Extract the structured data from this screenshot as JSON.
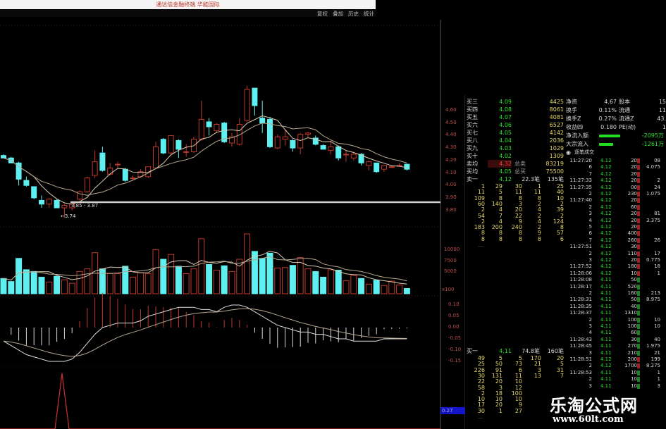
{
  "window": {
    "title": "通达信金融终端 华能国际"
  },
  "toolbar": {
    "buttons": [
      "复权",
      "叠加",
      "历史",
      "统计"
    ]
  },
  "colors": {
    "up": "#c0392b",
    "down": "#5ef0f0",
    "ma_line": "#d9c9b0",
    "background": "#000000",
    "inflow_bar": "#22dd22"
  },
  "chart_data": [
    {
      "type": "candlestick",
      "title": "",
      "y_ticks": [
        "4.60",
        "4.50",
        "4.40",
        "4.30",
        "4.20",
        "4.10",
        "4.00",
        "3.90",
        "3.80"
      ],
      "ohlc": [
        [
          4.24,
          4.25,
          4.22,
          4.22
        ],
        [
          4.22,
          4.23,
          4.18,
          4.18
        ],
        [
          4.18,
          4.19,
          4.0,
          4.05
        ],
        [
          4.04,
          4.07,
          3.99,
          4.0
        ],
        [
          3.99,
          3.99,
          3.89,
          3.9
        ],
        [
          3.88,
          3.92,
          3.82,
          3.85
        ],
        [
          3.85,
          3.9,
          3.82,
          3.89
        ],
        [
          3.88,
          3.89,
          3.82,
          3.82
        ],
        [
          3.82,
          3.85,
          3.74,
          3.84
        ],
        [
          3.82,
          3.86,
          3.8,
          3.85
        ],
        [
          3.89,
          3.96,
          3.88,
          3.95
        ],
        [
          3.95,
          4.07,
          3.94,
          4.06
        ],
        [
          4.08,
          4.28,
          4.06,
          4.19
        ],
        [
          4.26,
          4.31,
          4.11,
          4.12
        ],
        [
          4.09,
          4.18,
          4.08,
          4.14
        ],
        [
          4.17,
          4.19,
          4.14,
          4.17
        ],
        [
          4.13,
          4.14,
          4.03,
          4.04
        ],
        [
          4.06,
          4.08,
          4.04,
          4.06
        ],
        [
          4.07,
          4.13,
          4.06,
          4.11
        ],
        [
          4.07,
          4.15,
          4.06,
          4.15
        ],
        [
          4.14,
          4.35,
          4.13,
          4.31
        ],
        [
          4.37,
          4.38,
          4.25,
          4.26
        ],
        [
          4.26,
          4.4,
          4.24,
          4.4
        ],
        [
          4.36,
          4.37,
          4.22,
          4.29
        ],
        [
          4.27,
          4.33,
          4.23,
          4.27
        ],
        [
          4.27,
          4.39,
          4.26,
          4.37
        ],
        [
          4.37,
          4.68,
          4.36,
          4.53
        ],
        [
          4.51,
          4.54,
          4.4,
          4.47
        ],
        [
          4.44,
          4.5,
          4.42,
          4.49
        ],
        [
          4.5,
          4.51,
          4.34,
          4.35
        ],
        [
          4.34,
          4.42,
          4.31,
          4.39
        ],
        [
          4.33,
          4.54,
          4.32,
          4.49
        ],
        [
          4.52,
          4.8,
          4.51,
          4.77
        ],
        [
          4.78,
          4.78,
          4.56,
          4.64
        ],
        [
          4.54,
          4.68,
          4.42,
          4.5
        ],
        [
          4.53,
          4.55,
          4.3,
          4.31
        ],
        [
          4.3,
          4.41,
          4.29,
          4.39
        ],
        [
          4.37,
          4.45,
          4.32,
          4.39
        ],
        [
          4.36,
          4.37,
          4.27,
          4.3
        ],
        [
          4.3,
          4.42,
          4.25,
          4.41
        ],
        [
          4.41,
          4.43,
          4.38,
          4.42
        ],
        [
          4.38,
          4.4,
          4.32,
          4.33
        ],
        [
          4.32,
          4.33,
          4.29,
          4.29
        ],
        [
          4.28,
          4.36,
          4.25,
          4.31
        ],
        [
          4.31,
          4.32,
          4.2,
          4.22
        ],
        [
          4.25,
          4.28,
          4.19,
          4.25
        ],
        [
          4.22,
          4.27,
          4.2,
          4.25
        ],
        [
          4.25,
          4.26,
          4.16,
          4.18
        ],
        [
          4.16,
          4.2,
          4.12,
          4.19
        ],
        [
          4.18,
          4.18,
          4.1,
          4.11
        ],
        [
          4.13,
          4.16,
          4.11,
          4.16
        ],
        [
          4.15,
          4.16,
          4.14,
          4.15
        ],
        [
          4.16,
          4.18,
          4.15,
          4.16
        ],
        [
          4.17,
          4.17,
          4.12,
          4.13
        ]
      ],
      "moving_averages": [
        5,
        10
      ],
      "support_line_label": "3.85 - 3.87",
      "low_marker_label": "←3.74"
    },
    {
      "type": "bar",
      "y_ticks": [
        "10000",
        "7500",
        "5000"
      ],
      "unit_label": "x100",
      "values": [
        3500,
        2800,
        8100,
        5500,
        5100,
        3800,
        2700,
        4000,
        3200,
        2400,
        5100,
        5700,
        9400,
        5700,
        4600,
        4600,
        6300,
        3800,
        4800,
        4600,
        10100,
        7900,
        9000,
        6300,
        4600,
        5700,
        12600,
        6700,
        5400,
        6400,
        5100,
        7900,
        13700,
        9700,
        8100,
        9300,
        5900,
        6000,
        6500,
        8300,
        5700,
        5100,
        3800,
        5500,
        5400,
        3000,
        4200,
        3500,
        2200,
        3100,
        1900,
        2900,
        2000,
        1200
      ]
    },
    {
      "type": "line",
      "y_ticks": [
        "0.10",
        "0.05",
        "0.00",
        "-0.05",
        "-0.10",
        "-0.15"
      ],
      "dif": [
        -0.06,
        -0.08,
        -0.1,
        -0.12,
        -0.13,
        -0.14,
        -0.15,
        -0.15,
        -0.15,
        -0.14,
        -0.11,
        -0.07,
        -0.03,
        0.0,
        0.01,
        0.02,
        0.02,
        0.02,
        0.03,
        0.05,
        0.06,
        0.07,
        0.08,
        0.09,
        0.09,
        0.09,
        0.08,
        0.08,
        0.07,
        0.09,
        0.1,
        0.1,
        0.09,
        0.07,
        0.05,
        0.03,
        0.01,
        0.0,
        -0.01,
        -0.02,
        -0.02,
        -0.03,
        -0.03,
        -0.04,
        -0.05,
        -0.05,
        -0.06,
        -0.06,
        -0.06,
        -0.06,
        -0.05,
        -0.05,
        -0.05,
        -0.05
      ]
    },
    {
      "type": "line",
      "value_label": "0.27"
    }
  ],
  "order_book": {
    "levels": [
      {
        "label": "买三",
        "price": "4.09",
        "qty": "4425"
      },
      {
        "label": "买四",
        "price": "4.08",
        "qty": "8061"
      },
      {
        "label": "买五",
        "price": "4.07",
        "qty": "4081"
      },
      {
        "label": "买六",
        "price": "4.06",
        "qty": "6527"
      },
      {
        "label": "买七",
        "price": "4.05",
        "qty": "4142"
      },
      {
        "label": "买八",
        "price": "4.04",
        "qty": "2036"
      },
      {
        "label": "买九",
        "price": "4.03",
        "qty": "1029"
      },
      {
        "label": "买十",
        "price": "4.02",
        "qty": "1309"
      }
    ],
    "sell_avg": {
      "label": "卖均",
      "price": "4.32",
      "total_label": "总卖",
      "total": "83219"
    },
    "buy_avg": {
      "label": "买均",
      "price": "4.05",
      "total_label": "总买",
      "total": "75500"
    },
    "sell1": {
      "label": "卖一",
      "price": "4.12",
      "vol": "22.3笔",
      "count": "135笔"
    },
    "sell1_queue": [
      [
        "1",
        "29",
        "30",
        "1",
        "25"
      ],
      [
        "11",
        "5",
        "11",
        "11",
        "40"
      ],
      [
        "109",
        "8",
        "8",
        "8",
        "10"
      ],
      [
        "60",
        "140",
        "3",
        "2",
        "2"
      ],
      [
        "2",
        "4",
        "20",
        "4",
        "39"
      ],
      [
        "54",
        "7",
        "22",
        "2",
        "2"
      ],
      [
        "2",
        "4",
        "9",
        "4",
        "124"
      ],
      [
        "183",
        "200",
        "240",
        "2",
        "8"
      ],
      [
        "8",
        "8",
        "8",
        "9",
        "57"
      ],
      [
        "8",
        "8",
        "8",
        "8",
        "6"
      ]
    ],
    "queue_more": "....",
    "buy1": {
      "label": "买一",
      "price": "4.11",
      "vol": "74.8笔",
      "count": "160笔"
    },
    "buy1_queue": [
      [
        "49",
        "5",
        "5",
        "170",
        "20"
      ],
      [
        "25",
        "50",
        "73",
        "21",
        "5"
      ],
      [
        "226",
        "91",
        "6",
        "3",
        "31"
      ],
      [
        "30",
        "131",
        "11",
        "13",
        "7"
      ],
      [
        "22",
        "20",
        "10",
        "",
        ""
      ],
      [
        "58",
        "3",
        "12",
        "",
        ""
      ],
      [
        "2",
        "18",
        "100",
        "",
        ""
      ],
      [
        "10",
        "10",
        "10",
        "",
        ""
      ],
      [
        "17",
        "20",
        "9",
        "",
        ""
      ],
      [
        "30",
        "1",
        "27",
        "",
        ""
      ]
    ]
  },
  "info": {
    "rows": [
      {
        "label": "净资",
        "value": "4.67",
        "label2": "股本",
        "value2": "15"
      },
      {
        "label": "换手",
        "value": "0.11%",
        "label2": "流通",
        "value2": "11"
      },
      {
        "label": "换手Z",
        "value": "0.27%",
        "label2": "流通Z",
        "value2": "43."
      },
      {
        "label": "收益㈣",
        "value": "0.180",
        "label2": "PE(动)",
        "value2": "1"
      }
    ],
    "flows": [
      {
        "label": "净流入额",
        "value": "-2095万",
        "level": 0.75
      },
      {
        "label": "大宗流入",
        "value": "-1261万",
        "level": 0.5
      }
    ],
    "ticks_header": "逐笔成交"
  },
  "ticks": [
    {
      "time": "11:27:20",
      "price": "4.12",
      "vol": "20",
      "side": "buy",
      "extra": "08"
    },
    {
      "time": "6",
      "price": "4.12",
      "vol": "20",
      "side": "buy",
      "extra": "4.075"
    },
    {
      "time": "7",
      "price": "4.12",
      "vol": "20",
      "side": "buy",
      "extra": ""
    },
    {
      "time": "11:27:33",
      "price": "4.12",
      "vol": "20",
      "side": "buy",
      "extra": "2"
    },
    {
      "time": "11:27:35",
      "price": "4.12",
      "vol": "00",
      "side": "buy",
      "extra": "24"
    },
    {
      "time": "2",
      "price": "4.12",
      "vol": "230",
      "side": "buy",
      "extra": "1.075"
    },
    {
      "time": "11:27:40",
      "price": "4.12",
      "vol": "20",
      "side": "buy",
      "extra": ""
    },
    {
      "time": "2",
      "price": "4.12",
      "vol": "60",
      "side": "buy",
      "extra": ""
    },
    {
      "time": "3",
      "price": "4.12",
      "vol": "20",
      "side": "buy",
      "extra": "81"
    },
    {
      "time": "4",
      "price": "4.12",
      "vol": "20",
      "side": "buy",
      "extra": "3.375"
    },
    {
      "time": "5",
      "price": "4.12",
      "vol": "20",
      "side": "buy",
      "extra": ""
    },
    {
      "time": "6",
      "price": "4.12",
      "vol": "400",
      "side": "buy",
      "extra": ""
    },
    {
      "time": "7",
      "price": "4.12",
      "vol": "260",
      "side": "buy",
      "extra": "26"
    },
    {
      "time": "11:27:51",
      "price": "4.12",
      "vol": "30",
      "side": "buy",
      "extra": ""
    },
    {
      "time": "2",
      "price": "4.12",
      "vol": "110",
      "side": "buy",
      "extra": "17"
    },
    {
      "time": "3",
      "price": "4.12",
      "vol": "20",
      "side": "buy",
      "extra": "0.775"
    },
    {
      "time": "11:27:52",
      "price": "4.12",
      "vol": "180",
      "side": "buy",
      "extra": "18"
    },
    {
      "time": "11:28:06",
      "price": "4.12",
      "vol": "10",
      "side": "buy",
      "extra": "1"
    },
    {
      "time": "11:28:08",
      "price": "4.11",
      "vol": "50",
      "side": "sell",
      "extra": ""
    },
    {
      "time": "11:28:17",
      "price": "4.11",
      "vol": "520",
      "side": "sell",
      "extra": ""
    },
    {
      "time": "2",
      "price": "4.11",
      "vol": "160",
      "side": "sell",
      "extra": "213"
    },
    {
      "time": "11:28:31",
      "price": "4.11",
      "vol": "50",
      "side": "sell",
      "extra": "8.975"
    },
    {
      "time": "11:28:35",
      "price": "4.11",
      "vol": "40",
      "side": "sell",
      "extra": ""
    },
    {
      "time": "11:28:37",
      "price": "4.11",
      "vol": "1310",
      "side": "sell",
      "extra": ""
    },
    {
      "time": "2",
      "price": "4.11",
      "vol": "100",
      "side": "sell",
      "extra": "10"
    },
    {
      "time": "3",
      "price": "4.11",
      "vol": "100",
      "side": "sell",
      "extra": "10"
    },
    {
      "time": "4",
      "price": "4.11",
      "vol": "60",
      "side": "sell",
      "extra": ""
    },
    {
      "time": "11:28:43",
      "price": "4.11",
      "vol": "30",
      "side": "sell",
      "extra": "40"
    },
    {
      "time": "11:28:45",
      "price": "4.11",
      "vol": "270",
      "side": "sell",
      "extra": "1.975"
    },
    {
      "time": "3",
      "price": "4.11",
      "vol": "210",
      "side": "sell",
      "extra": "21"
    },
    {
      "time": "11:28:51",
      "price": "4.12",
      "vol": "200",
      "side": "buy",
      "extra": "199"
    },
    {
      "time": "2",
      "price": "4.12",
      "vol": "1700",
      "side": "buy",
      "extra": "8.275"
    },
    {
      "time": "11:28:53",
      "price": "4.11",
      "vol": "10",
      "side": "sell",
      "extra": "1"
    },
    {
      "time": "2",
      "price": "4.11",
      "vol": "10",
      "side": "sell",
      "extra": "1"
    },
    {
      "time": "3",
      "price": "4.11",
      "vol": "10",
      "side": "sell",
      "extra": "3"
    }
  ],
  "watermark": {
    "name": "乐淘公式网",
    "url": "www.60lt.com"
  }
}
